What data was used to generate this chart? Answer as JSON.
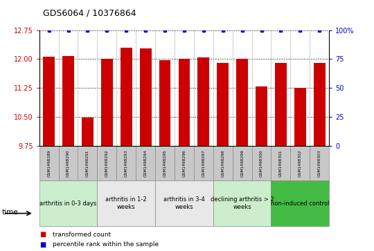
{
  "title": "GDS6064 / 10376864",
  "samples": [
    "GSM1498289",
    "GSM1498290",
    "GSM1498291",
    "GSM1498292",
    "GSM1498293",
    "GSM1498294",
    "GSM1498295",
    "GSM1498296",
    "GSM1498297",
    "GSM1498298",
    "GSM1498299",
    "GSM1498300",
    "GSM1498301",
    "GSM1498302",
    "GSM1498303"
  ],
  "bar_values": [
    12.06,
    12.07,
    10.47,
    12.0,
    12.3,
    12.27,
    11.97,
    12.0,
    12.05,
    11.9,
    12.0,
    11.28,
    11.9,
    11.25,
    11.9
  ],
  "percentile_values": [
    100,
    100,
    100,
    100,
    100,
    100,
    100,
    100,
    100,
    100,
    100,
    100,
    100,
    100,
    100
  ],
  "bar_color": "#cc0000",
  "percentile_color": "#0000cc",
  "ylim_left": [
    9.75,
    12.75
  ],
  "ylim_right": [
    0,
    100
  ],
  "yticks_left": [
    9.75,
    10.5,
    11.25,
    12.0,
    12.75
  ],
  "yticks_right": [
    0,
    25,
    50,
    75,
    100
  ],
  "groups": [
    {
      "label": "arthritis in 0-3 days",
      "start": 0,
      "end": 3,
      "color": "#cceecc"
    },
    {
      "label": "arthritis in 1-2\nweeks",
      "start": 3,
      "end": 6,
      "color": "#e8e8e8"
    },
    {
      "label": "arthritis in 3-4\nweeks",
      "start": 6,
      "end": 9,
      "color": "#e8e8e8"
    },
    {
      "label": "declining arthritis > 2\nweeks",
      "start": 9,
      "end": 12,
      "color": "#cceecc"
    },
    {
      "label": "non-induced control",
      "start": 12,
      "end": 15,
      "color": "#44bb44"
    }
  ],
  "legend_labels": [
    "transformed count",
    "percentile rank within the sample"
  ],
  "legend_colors": [
    "#cc0000",
    "#0000cc"
  ],
  "sample_box_color": "#c8c8c8",
  "background_color": "#ffffff"
}
